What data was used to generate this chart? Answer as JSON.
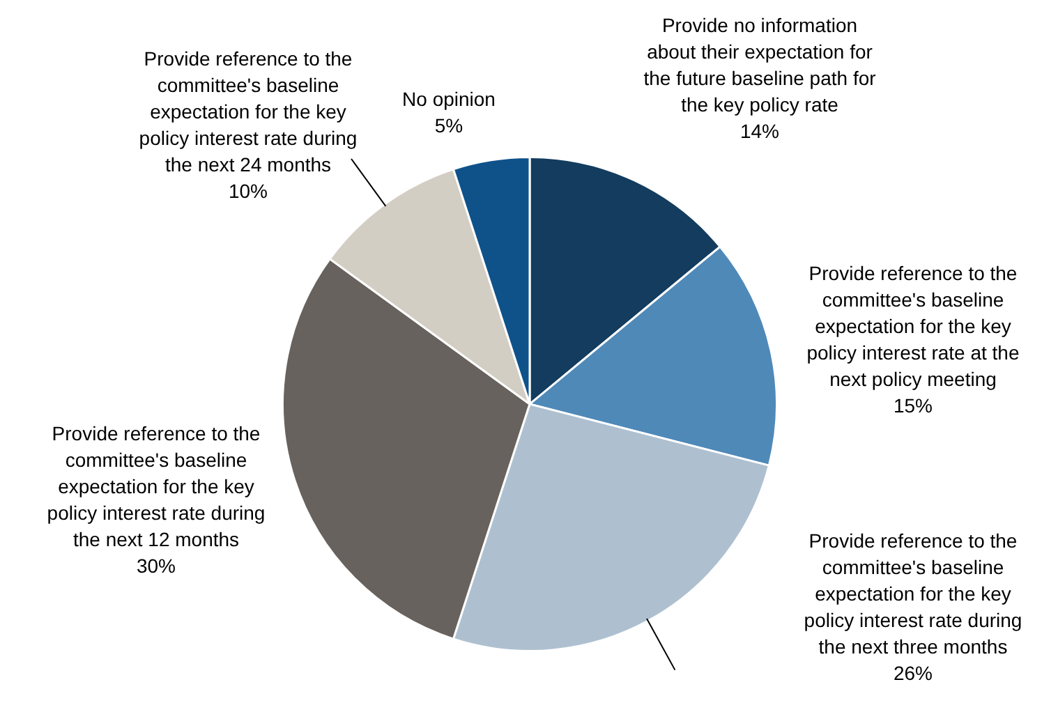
{
  "chart_data": {
    "type": "pie",
    "categories": [
      "Provide no information about their expectation for the future baseline path for the key policy rate",
      "Provide reference to the committee's baseline expectation for the key policy interest rate at the next policy meeting",
      "Provide reference to the committee's baseline expectation for the key policy interest rate during the next three months",
      "Provide reference to the committee's baseline expectation for the key policy interest rate during the next 12 months",
      "Provide reference to the committee's baseline expectation for the key policy interest rate during the next 24 months",
      "No opinion"
    ],
    "values": [
      14,
      15,
      26,
      30,
      10,
      5
    ],
    "value_labels": [
      "14%",
      "15%",
      "26%",
      "30%",
      "10%",
      "5%"
    ],
    "colors": [
      "#133c5e",
      "#4f89b8",
      "#aec0d0",
      "#67625e",
      "#d2cec4",
      "#0f528a"
    ],
    "legend": false
  }
}
